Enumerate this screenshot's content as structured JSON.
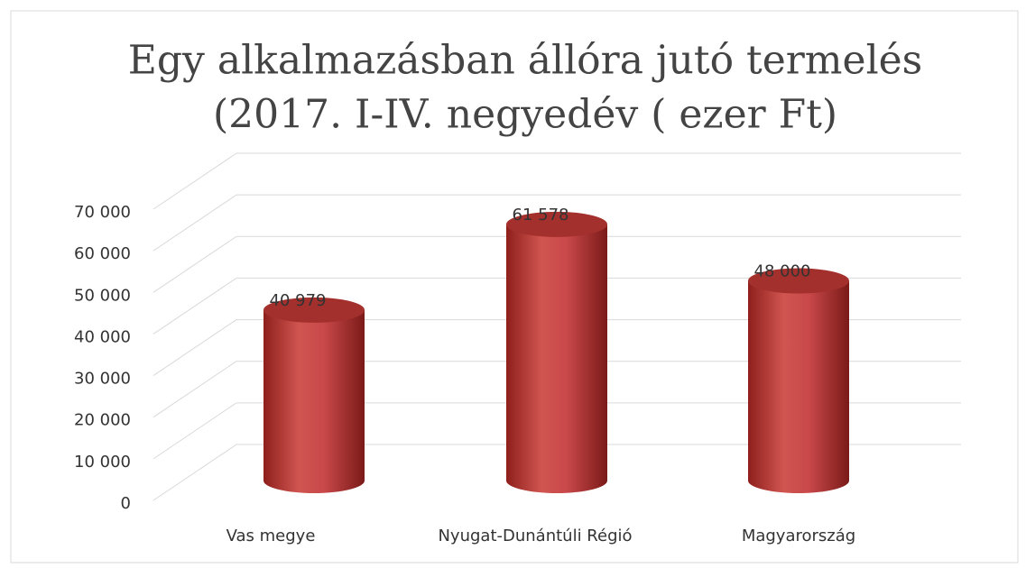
{
  "chart_data": {
    "type": "bar3d",
    "title": [
      "Egy alkalmazásban állóra jutó termelés",
      "(2017. I-IV. negyedév ( ezer Ft)"
    ],
    "categories": [
      "Vas megye",
      "Nyugat-Dunántúli Régió",
      "Magyarország"
    ],
    "values": [
      40979,
      61578,
      48000
    ],
    "value_labels": [
      "40 979",
      "61 578",
      "48 000"
    ],
    "color": "#c0392b",
    "ylim": [
      0,
      70000
    ],
    "yticks": [
      0,
      {
        "value": 10000,
        "label": "10 000"
      },
      {
        "value": 20000,
        "label": "20 000"
      },
      {
        "value": 30000,
        "label": "30 000"
      },
      {
        "value": 40000,
        "label": "40 000"
      },
      {
        "value": 50000,
        "label": "50 000"
      },
      {
        "value": 60000,
        "label": "60 000"
      },
      {
        "value": 70000,
        "label": "70 000"
      }
    ],
    "grid": true
  }
}
